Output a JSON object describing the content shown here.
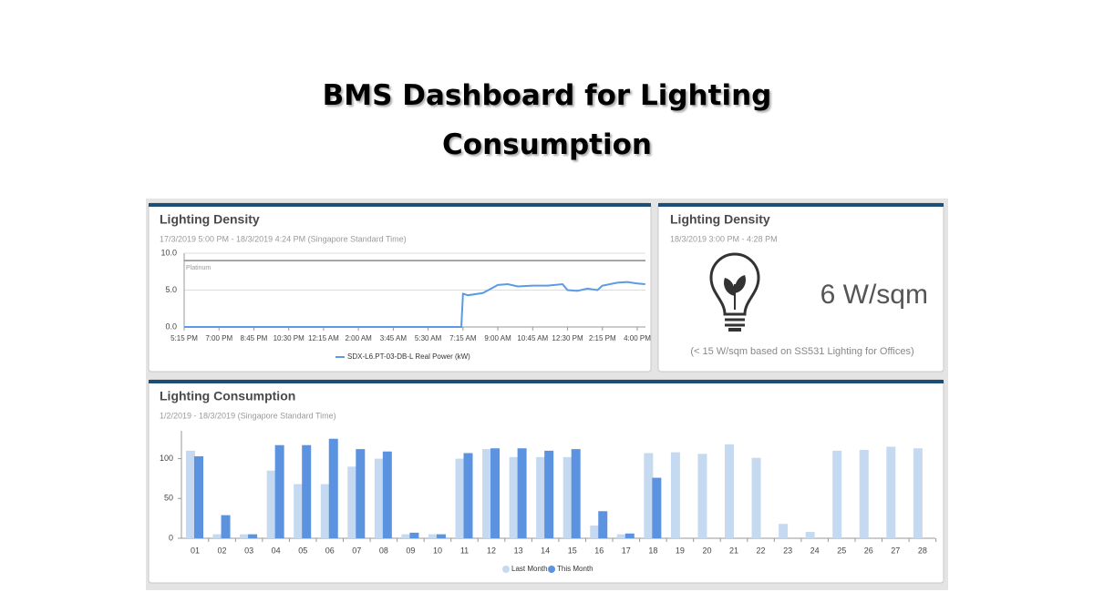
{
  "header": {
    "title": "BMS Dashboard for Lighting Consumption"
  },
  "chart_data": [
    {
      "type": "line",
      "title": "Lighting Density",
      "subtitle": "17/3/2019 5:00 PM - 18/3/2019 4:24 PM (Singapore Standard Time)",
      "x": [
        "5:15 PM",
        "7:10 AM",
        "7:15 AM",
        "7:30 AM",
        "8:15 AM",
        "9:00 AM",
        "9:30 AM",
        "10:00 AM",
        "10:45 AM",
        "11:30 AM",
        "12:15 PM",
        "12:30 PM",
        "1:00 PM",
        "1:30 PM",
        "2:00 PM",
        "2:15 PM",
        "3:00 PM",
        "3:30 PM",
        "4:00 PM",
        "4:24 PM"
      ],
      "series": [
        {
          "name": "SDX-L6.PT-03-DB-L Real Power (kW)",
          "color": "#5b9be6",
          "values": [
            0,
            0,
            4.5,
            4.3,
            4.6,
            5.7,
            5.8,
            5.5,
            5.6,
            5.6,
            5.8,
            5.0,
            4.9,
            5.2,
            5.0,
            5.6,
            6.0,
            6.1,
            5.9,
            5.8
          ]
        }
      ],
      "xticks": [
        "5:15 PM",
        "7:00 PM",
        "8:45 PM",
        "10:30 PM",
        "12:15 AM",
        "2:00 AM",
        "3:45 AM",
        "5:30 AM",
        "7:15 AM",
        "9:00 AM",
        "10:45 AM",
        "12:30 PM",
        "2:15 PM",
        "4:00 PM"
      ],
      "ylim": [
        0,
        10
      ],
      "yticks": [
        {
          "value": 0,
          "label": "0.0"
        },
        {
          "value": 5,
          "label": "5.0"
        },
        {
          "value": 10,
          "label": "10.0"
        }
      ],
      "grid": true,
      "threshold": {
        "label": "Platinum",
        "value": 9
      }
    },
    {
      "type": "bar",
      "title": "Lighting Consumption",
      "subtitle": "1/2/2019 - 18/3/2019 (Singapore Standard Time)",
      "categories": [
        "01",
        "02",
        "03",
        "04",
        "05",
        "06",
        "07",
        "08",
        "09",
        "10",
        "11",
        "12",
        "13",
        "14",
        "15",
        "16",
        "17",
        "18",
        "19",
        "20",
        "21",
        "22",
        "23",
        "24",
        "25",
        "26",
        "27",
        "28"
      ],
      "series": [
        {
          "name": "Last Month",
          "color": "#c5d9f1",
          "values": [
            110,
            5,
            5,
            85,
            68,
            68,
            90,
            100,
            5,
            5,
            100,
            112,
            102,
            102,
            102,
            16,
            5,
            107,
            108,
            106,
            118,
            101,
            18,
            8,
            110,
            111,
            115,
            113
          ]
        },
        {
          "name": "This Month",
          "color": "#5b93e0",
          "values": [
            103,
            29,
            5,
            117,
            117,
            125,
            112,
            109,
            7,
            5,
            107,
            113,
            113,
            110,
            112,
            34,
            6,
            76,
            null,
            null,
            null,
            null,
            null,
            null,
            null,
            null,
            null,
            null
          ]
        }
      ],
      "ylim": [
        0,
        135
      ],
      "yticks": [
        0,
        50,
        100
      ],
      "grid": false
    }
  ],
  "widget": {
    "title": "Lighting Density",
    "subtitle": "18/3/2019 3:00 PM - 4:28 PM",
    "value": "6 W/sqm",
    "note": "(< 15 W/sqm based on SS531 Lighting for Offices)"
  }
}
